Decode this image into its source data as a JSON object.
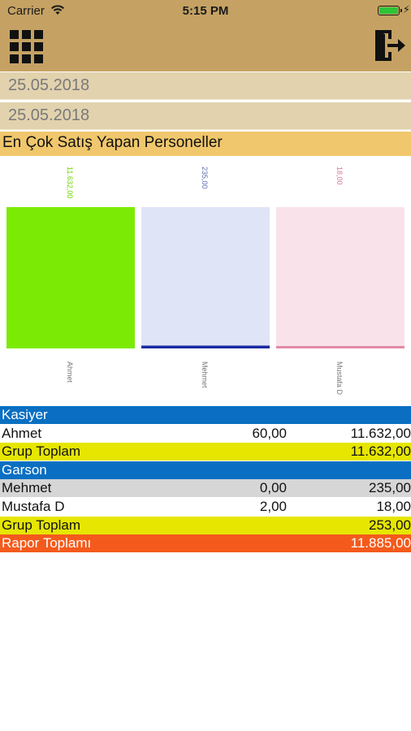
{
  "status_bar": {
    "carrier": "Carrier",
    "time": "5:15 PM",
    "wifi_icon": "wifi-icon",
    "battery_icon": "battery-icon"
  },
  "header": {
    "menu_icon": "grid-menu-icon",
    "exit_icon": "logout-icon",
    "color": "#c5a263"
  },
  "filters": {
    "start_date": "25.05.2018",
    "end_date": "25.05.2018"
  },
  "section": {
    "title": "En Çok Satış Yapan Personeller"
  },
  "chart_data": {
    "type": "bar",
    "categories": [
      "Ahmet",
      "Mehmet",
      "Mustafa D"
    ],
    "values": [
      11632.0,
      235.0,
      18.0
    ],
    "value_labels": [
      "11.632,00",
      "235,00",
      "18,00"
    ],
    "colors": [
      "#7beb06",
      "#dfe4f6",
      "#f9e2ea"
    ],
    "bar_line_colors": [
      "#7beb06",
      "#1b2aa0",
      "#e38aa6"
    ],
    "label_colors": [
      "#6fd600",
      "#5d6bb0",
      "#d77a98"
    ]
  },
  "report": {
    "rows": [
      {
        "type": "group",
        "c1": "Kasiyer",
        "c2": "",
        "c3": ""
      },
      {
        "type": "white",
        "c1": "Ahmet",
        "c2": "60,00",
        "c3": "11.632,00"
      },
      {
        "type": "total",
        "c1": "Grup Toplam",
        "c2": "",
        "c3": "11.632,00"
      },
      {
        "type": "group",
        "c1": "Garson",
        "c2": "",
        "c3": ""
      },
      {
        "type": "gray",
        "c1": "Mehmet",
        "c2": "0,00",
        "c3": "235,00"
      },
      {
        "type": "white",
        "c1": "Mustafa D",
        "c2": "2,00",
        "c3": "18,00"
      },
      {
        "type": "total",
        "c1": "Grup Toplam",
        "c2": "",
        "c3": "253,00"
      },
      {
        "type": "grand",
        "c1": "Rapor Toplamı",
        "c2": "",
        "c3": "11.885,00"
      }
    ]
  }
}
